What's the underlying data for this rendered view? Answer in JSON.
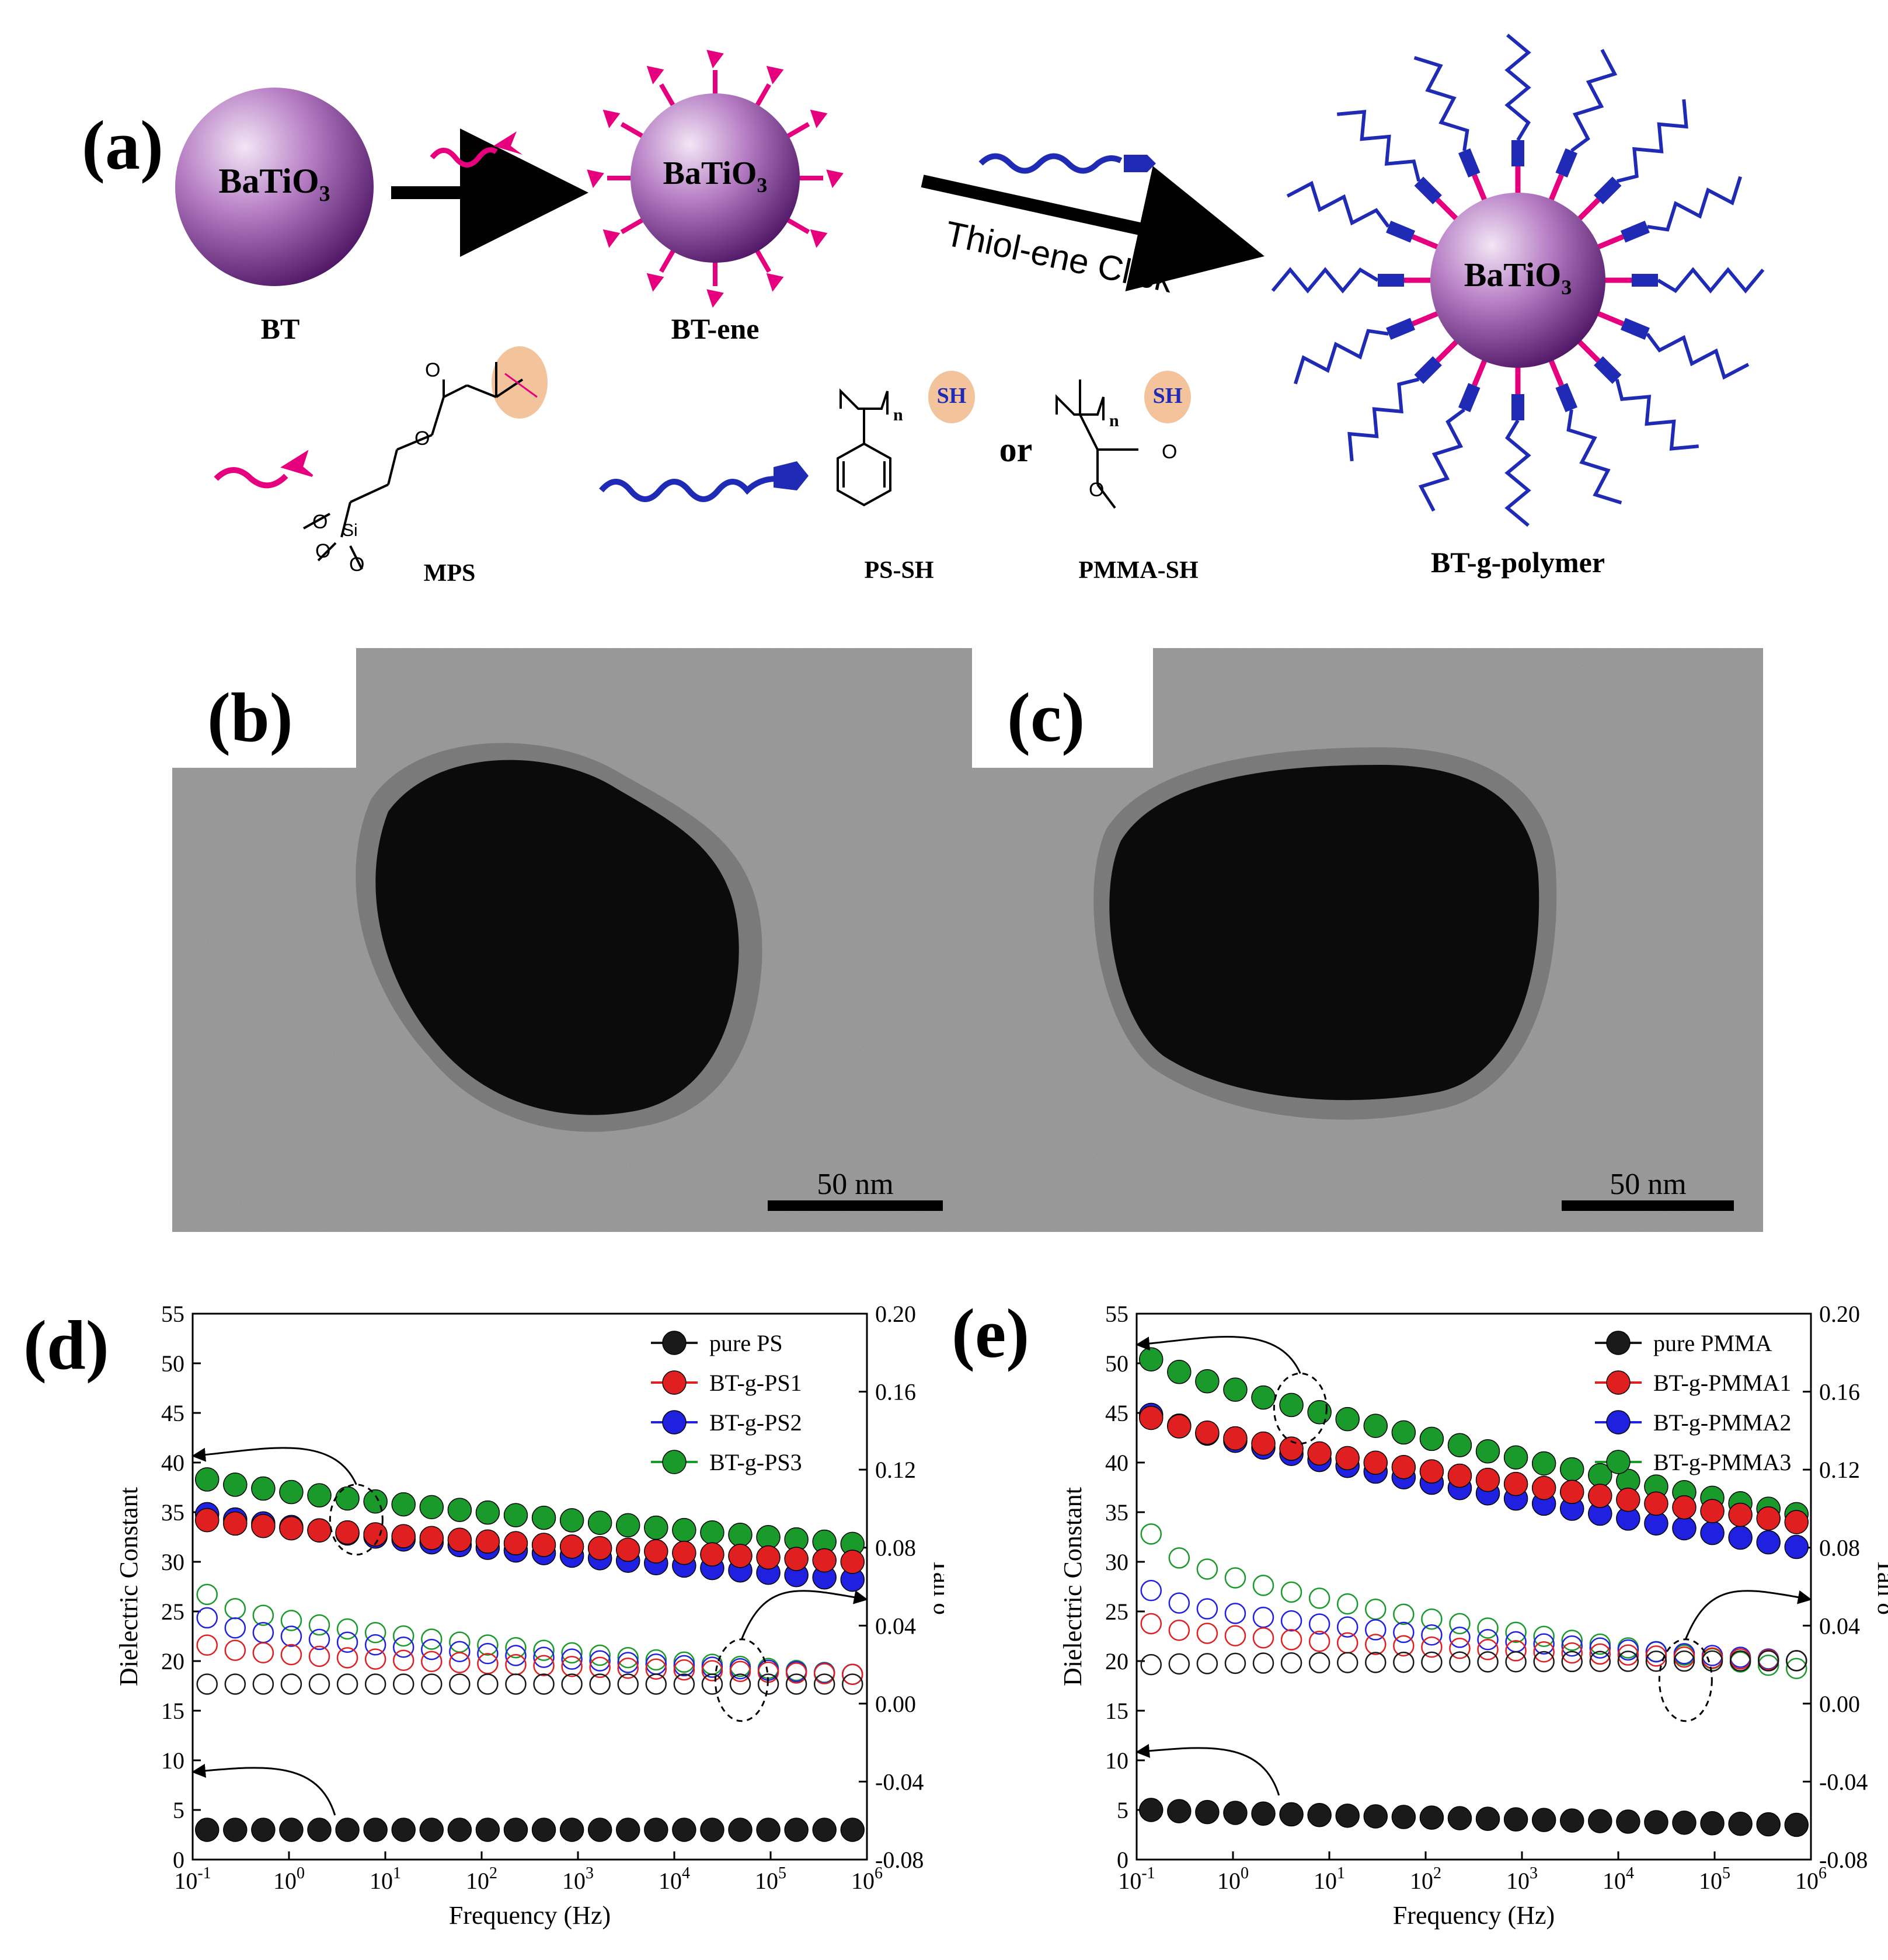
{
  "panels": {
    "a": "(a)",
    "b": "(b)",
    "c": "(c)",
    "d": "(d)",
    "e": "(e)"
  },
  "scheme": {
    "core_label": "BaTiO",
    "core_subscript": "3",
    "bt_label": "BT",
    "bt_ene_label": "BT-ene",
    "click_label": "Thiol-ene Click",
    "mps_label": "MPS",
    "ps_sh_label": "PS-SH",
    "or_label": "or",
    "pmma_sh_label": "PMMA-SH",
    "product_label": "BT-g-polymer",
    "sh": "SH",
    "n": "n",
    "si": "Si",
    "o": "O",
    "colors": {
      "sphere": "#7a2f8e",
      "ligand": "#e6007e",
      "chain": "#1f2bb5",
      "highlight": "#f3c49b"
    }
  },
  "tem": {
    "b": {
      "scale_label": "50 nm"
    },
    "c": {
      "scale_label": "50 nm"
    }
  },
  "chart_data": [
    {
      "type": "scatter",
      "panel": "d",
      "xlabel": "Frequency (Hz)",
      "ylabel_left": "Dielectric Constant",
      "ylabel_right": "Tan δ",
      "x_scale": "log",
      "xlim": [
        0.1,
        1000000
      ],
      "x_ticks": [
        "10-1",
        "100",
        "101",
        "102",
        "103",
        "104",
        "105",
        "106"
      ],
      "ylim_left": [
        0,
        55
      ],
      "yticks_left": [
        "0",
        "5",
        "10",
        "15",
        "20",
        "25",
        "30",
        "35",
        "40",
        "45",
        "50",
        "55"
      ],
      "ylim_right": [
        -0.08,
        0.2
      ],
      "yticks_right": [
        "-0.08",
        "-0.04",
        "0.00",
        "0.04",
        "0.08",
        "0.12",
        "0.16",
        "0.20"
      ],
      "legend": [
        "pure PS",
        "BT-g-PS1",
        "BT-g-PS2",
        "BT-g-PS3"
      ],
      "legend_position": "top-right",
      "series_colors": [
        "#1a1a1a",
        "#e02020",
        "#2020e0",
        "#1a9a2a"
      ],
      "dielectric_start": [
        3.0,
        34.2,
        34.8,
        38.3
      ],
      "dielectric_end": [
        3.0,
        30.0,
        28.2,
        31.8
      ],
      "tan_start": [
        0.01,
        0.03,
        0.044,
        0.056
      ],
      "tan_end": [
        0.01,
        0.015,
        0.015,
        0.015
      ]
    },
    {
      "type": "scatter",
      "panel": "e",
      "xlabel": "Frequency (Hz)",
      "ylabel_left": "Dielectric Constant",
      "ylabel_right": "Tan δ",
      "x_scale": "log",
      "xlim": [
        0.1,
        1000000
      ],
      "x_ticks": [
        "10-1",
        "100",
        "101",
        "102",
        "103",
        "104",
        "105",
        "106"
      ],
      "ylim_left": [
        0,
        55
      ],
      "yticks_left": [
        "0",
        "5",
        "10",
        "15",
        "20",
        "25",
        "30",
        "35",
        "40",
        "45",
        "50",
        "55"
      ],
      "ylim_right": [
        -0.08,
        0.2
      ],
      "yticks_right": [
        "-0.08",
        "-0.04",
        "0.00",
        "0.04",
        "0.08",
        "0.12",
        "0.16",
        "0.20"
      ],
      "legend": [
        "pure PMMA",
        "BT-g-PMMA1",
        "BT-g-PMMA2",
        "BT-g-PMMA3"
      ],
      "legend_position": "top-right",
      "series_colors": [
        "#1a1a1a",
        "#e02020",
        "#2020e0",
        "#1a9a2a"
      ],
      "dielectric_start": [
        5.0,
        44.5,
        44.8,
        50.4
      ],
      "dielectric_end": [
        3.5,
        34.0,
        31.5,
        34.8
      ],
      "tan_start": [
        0.02,
        0.041,
        0.058,
        0.087
      ],
      "tan_end": [
        0.022,
        0.022,
        0.022,
        0.018
      ]
    }
  ]
}
